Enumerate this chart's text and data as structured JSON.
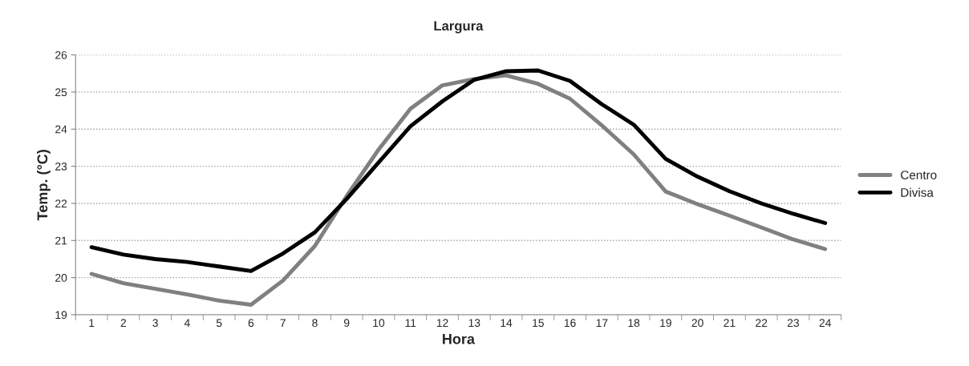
{
  "chart_data": {
    "type": "line",
    "title": "Largura",
    "xlabel": "Hora",
    "ylabel": "Temp. (°C)",
    "categories": [
      "1",
      "2",
      "3",
      "4",
      "5",
      "6",
      "7",
      "8",
      "9",
      "10",
      "11",
      "12",
      "13",
      "14",
      "15",
      "16",
      "17",
      "18",
      "19",
      "20",
      "21",
      "22",
      "23",
      "24"
    ],
    "series": [
      {
        "name": "Centro",
        "color": "#808080",
        "values": [
          20.1,
          19.85,
          19.7,
          19.55,
          19.38,
          19.27,
          19.92,
          20.85,
          22.2,
          23.45,
          24.55,
          25.18,
          25.35,
          25.45,
          25.22,
          24.82,
          24.1,
          23.32,
          22.32,
          21.98,
          21.67,
          21.35,
          21.03,
          20.77
        ]
      },
      {
        "name": "Divisa",
        "color": "#000000",
        "values": [
          20.82,
          20.62,
          20.5,
          20.42,
          20.3,
          20.18,
          20.65,
          21.22,
          22.12,
          23.1,
          24.08,
          24.75,
          25.33,
          25.56,
          25.58,
          25.3,
          24.67,
          24.12,
          23.2,
          22.72,
          22.33,
          22.0,
          21.72,
          21.47
        ]
      }
    ],
    "ylim": [
      19,
      26
    ],
    "yticks": [
      19,
      20,
      21,
      22,
      23,
      24,
      25,
      26
    ],
    "grid": "y",
    "legend": "right",
    "marker": "none",
    "line_style": "solid"
  }
}
